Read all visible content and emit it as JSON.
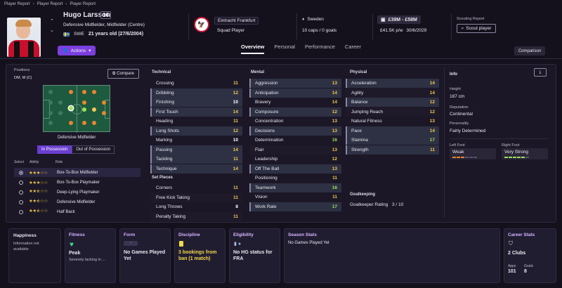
{
  "breadcrumb": [
    "Player Report",
    "Player Report",
    "Player Report"
  ],
  "player": {
    "name": "Hugo Larsson",
    "number": "16",
    "position": "Defensive Midfielder, Midfielder (Centre)",
    "nationality_code": "SWE",
    "age": "21 years old (27/6/2004)"
  },
  "club": {
    "name": "Eintracht Frankfurt",
    "role": "Squad Player"
  },
  "international": {
    "country": "Sweden",
    "caps": "10 caps / 0 goals"
  },
  "contract": {
    "value": "£39M - £58M",
    "wage": "£41.5K p/w",
    "expires": "30/6/2029"
  },
  "scouting": {
    "label": "Scouting Report",
    "button": "Scout player"
  },
  "actions_label": "Actions",
  "tabs": [
    "Overview",
    "Personal",
    "Performance",
    "Career"
  ],
  "comparison_label": "Comparison",
  "positions": {
    "title": "Positions",
    "value": "DM, M (C)",
    "compare": "Compare",
    "selected": "Defensive Midfielder"
  },
  "possession_tabs": [
    "In Possession",
    "Out of Possession"
  ],
  "roles_header": {
    "select": "Select",
    "ability": "Ability",
    "role": "Role"
  },
  "roles": [
    {
      "name": "Box-To-Box Midfielder",
      "stars": 3,
      "selected": true
    },
    {
      "name": "Box-To-Box Playmaker",
      "stars": 3,
      "selected": false
    },
    {
      "name": "Deep-Lying Playmaker",
      "stars": 2.5,
      "selected": false
    },
    {
      "name": "Defensive Midfielder",
      "stars": 2.5,
      "selected": false
    },
    {
      "name": "Half Back",
      "stars": 2.5,
      "selected": false
    }
  ],
  "technical": {
    "title": "Technical",
    "items": [
      {
        "name": "Crossing",
        "value": "11",
        "hl": false
      },
      {
        "name": "Dribbling",
        "value": "12",
        "hl": true
      },
      {
        "name": "Finishing",
        "value": "10",
        "hl": true
      },
      {
        "name": "First Touch",
        "value": "14",
        "hl": true
      },
      {
        "name": "Heading",
        "value": "11",
        "hl": false
      },
      {
        "name": "Long Shots",
        "value": "12",
        "hl": true
      },
      {
        "name": "Marking",
        "value": "10",
        "hl": false
      },
      {
        "name": "Passing",
        "value": "14",
        "hl": true
      },
      {
        "name": "Tackling",
        "value": "11",
        "hl": true
      },
      {
        "name": "Technique",
        "value": "14",
        "hl": true
      }
    ]
  },
  "set_pieces": {
    "title": "Set Pieces",
    "items": [
      {
        "name": "Corners",
        "value": "11"
      },
      {
        "name": "Free Kick Taking",
        "value": "11"
      },
      {
        "name": "Long Throws",
        "value": "8"
      },
      {
        "name": "Penalty Taking",
        "value": "11"
      }
    ]
  },
  "mental": {
    "title": "Mental",
    "items": [
      {
        "name": "Aggression",
        "value": "13",
        "hl": true
      },
      {
        "name": "Anticipation",
        "value": "14",
        "hl": true
      },
      {
        "name": "Bravery",
        "value": "14",
        "hl": false
      },
      {
        "name": "Composure",
        "value": "12",
        "hl": true
      },
      {
        "name": "Concentration",
        "value": "13",
        "hl": false
      },
      {
        "name": "Decisions",
        "value": "13",
        "hl": true
      },
      {
        "name": "Determination",
        "value": "16",
        "hl": false
      },
      {
        "name": "Flair",
        "value": "13",
        "hl": false
      },
      {
        "name": "Leadership",
        "value": "12",
        "hl": false
      },
      {
        "name": "Off The Ball",
        "value": "13",
        "hl": true
      },
      {
        "name": "Positioning",
        "value": "11",
        "hl": false
      },
      {
        "name": "Teamwork",
        "value": "16",
        "hl": true
      },
      {
        "name": "Vision",
        "value": "11",
        "hl": false
      },
      {
        "name": "Work Rate",
        "value": "17",
        "hl": true
      }
    ]
  },
  "physical": {
    "title": "Physical",
    "items": [
      {
        "name": "Acceleration",
        "value": "14",
        "hl": true
      },
      {
        "name": "Agility",
        "value": "14",
        "hl": false
      },
      {
        "name": "Balance",
        "value": "12",
        "hl": true
      },
      {
        "name": "Jumping Reach",
        "value": "12",
        "hl": false
      },
      {
        "name": "Natural Fitness",
        "value": "13",
        "hl": false
      },
      {
        "name": "Pace",
        "value": "14",
        "hl": true
      },
      {
        "name": "Stamina",
        "value": "17",
        "hl": true
      },
      {
        "name": "Strength",
        "value": "11",
        "hl": true
      }
    ]
  },
  "goalkeeping": {
    "title": "Goalkeeping",
    "label": "Goalkeeper Rating",
    "value": "3 / 10"
  },
  "info": {
    "title": "Info",
    "height_label": "Height",
    "height": "187 cm",
    "reputation_label": "Reputation",
    "reputation": "Continental",
    "personality_label": "Personality",
    "personality": "Fairly Determined",
    "left_foot_label": "Left Foot",
    "left_foot": "Weak",
    "right_foot_label": "Right Foot",
    "right_foot": "Very Strong"
  },
  "cards": {
    "happiness": {
      "title": "Happiness",
      "text": "Information not available"
    },
    "fitness": {
      "title": "Fitness",
      "status": "Peak",
      "sub": "Severely lacking in ..."
    },
    "form": {
      "title": "Form",
      "badge": "-",
      "text": "No Games Played Yet"
    },
    "discipline": {
      "title": "Discipline",
      "text": "3 bookings from ban (1 match)"
    },
    "eligibility": {
      "title": "Eligibility",
      "text": "No HG status for FRA"
    },
    "season": {
      "title": "Season Stats",
      "text": "No Games Played Yet"
    },
    "career": {
      "title": "Career Stats",
      "clubs": "2 Clubs",
      "apps_label": "Apps",
      "apps": "101",
      "goals_label": "Goals",
      "goals": "8"
    }
  },
  "colors": {
    "accent": "#7c3fe0",
    "highlight": "#2e3144",
    "value_high": "#9de05a",
    "value_mid": "#f2c94c"
  }
}
